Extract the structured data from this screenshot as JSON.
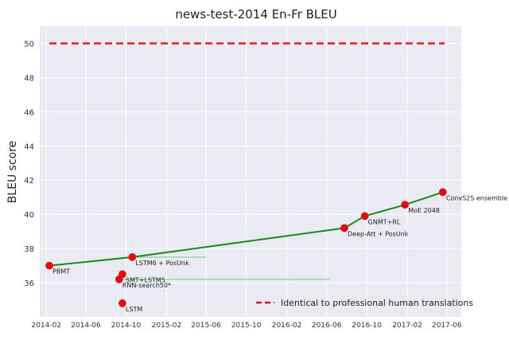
{
  "chart_data": {
    "type": "scatter",
    "title": "news-test-2014 En-Fr BLEU",
    "xlabel": "",
    "ylabel": "BLEU score",
    "xlim": [
      "2014-01-12",
      "2017-07-15"
    ],
    "ylim": [
      34.0,
      51.0
    ],
    "yticks": [
      36,
      38,
      40,
      42,
      44,
      46,
      48,
      50
    ],
    "xticks": [
      "2014-02",
      "2014-06",
      "2014-10",
      "2015-02",
      "2015-06",
      "2015-10",
      "2016-02",
      "2016-06",
      "2016-10",
      "2017-02",
      "2017-06"
    ],
    "grid": true,
    "legend": {
      "placement": "lower-right",
      "entries": [
        "Identical to professional human translations"
      ]
    },
    "reference_line": {
      "name": "Identical to professional human translations",
      "y": 50.0,
      "x": [
        "2014-02-10",
        "2017-05-25"
      ],
      "color": "#ff0000",
      "style": "dashed"
    },
    "points": [
      {
        "label": "PBMT",
        "date": "2014-02-10",
        "bleu": 37.0
      },
      {
        "label": "LSTM6 + PosUnk",
        "date": "2014-10-20",
        "bleu": 37.5
      },
      {
        "label": "SMT+LSTM5",
        "date": "2014-09-20",
        "bleu": 36.5
      },
      {
        "label": "RNN-search50*",
        "date": "2014-09-10",
        "bleu": 36.2
      },
      {
        "label": "LSTM",
        "date": "2014-09-20",
        "bleu": 34.8
      },
      {
        "label": "Deep-Att + PosUnk",
        "date": "2016-07-25",
        "bleu": 39.2
      },
      {
        "label": "GNMT+RL",
        "date": "2016-09-25",
        "bleu": 39.9
      },
      {
        "label": "MoE 2048",
        "date": "2017-01-25",
        "bleu": 40.56
      },
      {
        "label": "ConvS2S ensemble",
        "date": "2017-05-20",
        "bleu": 41.3
      }
    ],
    "sota_line": [
      "PBMT",
      "LSTM6 + PosUnk",
      "Deep-Att + PosUnk",
      "GNMT+RL",
      "MoE 2048",
      "ConvS2S ensemble"
    ],
    "thin_lines": [
      {
        "from": "LSTM6 + PosUnk",
        "to_date": "2015-06-01",
        "y": 37.5
      },
      {
        "from": "RNN-search50*",
        "to_date": "2016-06-10",
        "y": 36.2
      }
    ],
    "colors": {
      "points": "#ff0000",
      "point_edge": "#b03030",
      "sota": "#138d13",
      "thin": "#8fd18f",
      "background": "#eaeaf2",
      "grid": "#ffffff"
    }
  }
}
